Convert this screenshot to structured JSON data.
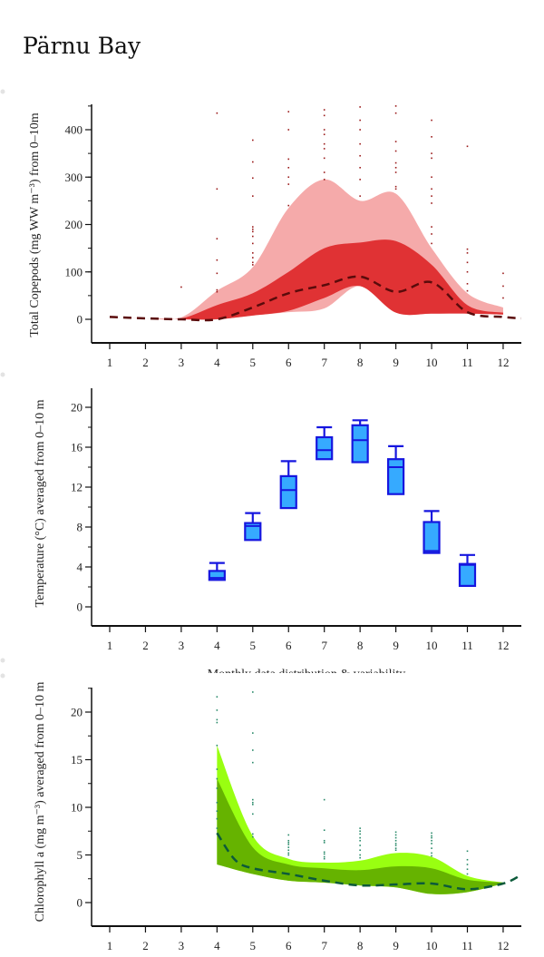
{
  "title": "Pärnu Bay",
  "colors": {
    "copepod_outer": "#f5aaaa",
    "copepod_inner": "#e03234",
    "copepod_median": "#5a0b0b",
    "copepod_points": "#9b1b1b",
    "temp_box_fill": "#36aaff",
    "temp_box_stroke": "#1616df",
    "chl_outer": "#99ff11",
    "chl_inner": "#66b300",
    "chl_median": "#0c5a3a",
    "chl_points": "#2a8a6a"
  },
  "chart_data": [
    {
      "type": "area",
      "ylabel": "Total Copepods (mg WW m⁻³) from 0–10m",
      "xticks": [
        "1",
        "2",
        "3",
        "4",
        "5",
        "6",
        "7",
        "8",
        "9",
        "10",
        "11",
        "12"
      ],
      "yticks": [
        "0",
        "100",
        "200",
        "300",
        "400"
      ],
      "ytick_values": [
        0,
        100,
        200,
        300,
        400
      ],
      "ylim": [
        -50,
        450
      ],
      "xlim": [
        0.5,
        12.5
      ],
      "median": {
        "x": [
          1,
          2,
          3,
          4,
          5,
          6,
          7,
          8,
          9,
          10,
          11,
          12,
          12.5
        ],
        "y": [
          5,
          2,
          0,
          0,
          25,
          55,
          72,
          90,
          58,
          78,
          15,
          5,
          2
        ]
      },
      "inner_band": {
        "x": [
          1,
          2,
          3,
          4,
          5,
          6,
          7,
          8,
          9,
          10,
          11,
          12
        ],
        "lower": [
          5,
          2,
          0,
          0,
          8,
          18,
          45,
          70,
          14,
          12,
          12,
          10
        ],
        "upper": [
          5,
          2,
          2,
          30,
          55,
          100,
          150,
          162,
          165,
          115,
          30,
          14
        ]
      },
      "outer_band": {
        "x": [
          1,
          2,
          3,
          4,
          5,
          6,
          7,
          8,
          9,
          10,
          11,
          12
        ],
        "lower": [
          5,
          2,
          0,
          0,
          8,
          15,
          23,
          70,
          14,
          12,
          12,
          10
        ],
        "upper": [
          5,
          2,
          4,
          60,
          110,
          235,
          295,
          250,
          265,
          150,
          55,
          25
        ]
      },
      "points": {
        "3": [
          68
        ],
        "4": [
          435,
          275,
          170,
          125,
          97,
          62,
          58
        ],
        "5": [
          378,
          332,
          298,
          260,
          195,
          190,
          185,
          175,
          160,
          140,
          130,
          120,
          115
        ],
        "6": [
          438,
          400,
          338,
          320,
          300,
          285,
          240
        ],
        "7": [
          442,
          430,
          400,
          390,
          370,
          360,
          340,
          310,
          295
        ],
        "8": [
          448,
          420,
          400,
          370,
          345,
          320,
          295,
          260
        ],
        "9": [
          450,
          435,
          375,
          355,
          330,
          320,
          310,
          280,
          275
        ],
        "10": [
          420,
          385,
          350,
          340,
          300,
          275,
          260,
          245,
          195,
          180,
          160
        ],
        "11": [
          365,
          148,
          140,
          120,
          100,
          75,
          60
        ],
        "12": [
          97,
          70,
          45
        ]
      }
    },
    {
      "type": "box",
      "ylabel": "Temperature (°C) averaged from 0–10 m",
      "xlabel": "Monthly data distribution & variability",
      "xticks": [
        "1",
        "2",
        "3",
        "4",
        "5",
        "6",
        "7",
        "8",
        "9",
        "10",
        "11",
        "12"
      ],
      "yticks": [
        "0",
        "4",
        "8",
        "12",
        "16",
        "20"
      ],
      "ytick_values": [
        0,
        4,
        8,
        12,
        16,
        20
      ],
      "ylim": [
        -2,
        22
      ],
      "xlim": [
        0.5,
        12.5
      ],
      "boxes": [
        {
          "month": 4,
          "whisker_high": 4.4,
          "q3": 3.6,
          "median": 2.9,
          "q1": 2.7
        },
        {
          "month": 5,
          "whisker_high": 9.4,
          "q3": 8.4,
          "median": 8.1,
          "q1": 6.7
        },
        {
          "month": 6,
          "whisker_high": 14.6,
          "q3": 13.1,
          "median": 11.7,
          "q1": 9.9
        },
        {
          "month": 7,
          "whisker_high": 18.0,
          "q3": 17.0,
          "median": 15.7,
          "q1": 14.8
        },
        {
          "month": 8,
          "whisker_high": 18.7,
          "q3": 18.2,
          "median": 16.7,
          "q1": 14.5
        },
        {
          "month": 9,
          "whisker_high": 16.1,
          "q3": 14.8,
          "median": 14.0,
          "q1": 11.3
        },
        {
          "month": 10,
          "whisker_high": 9.6,
          "q3": 8.5,
          "median": 5.6,
          "q1": 5.4
        },
        {
          "month": 11,
          "whisker_high": 5.2,
          "q3": 4.3,
          "median": 4.2,
          "q1": 2.1
        }
      ]
    },
    {
      "type": "area",
      "ylabel": "Chlorophyll a (mg m⁻³) averaged from 0–10 m",
      "xticks": [
        "1",
        "2",
        "3",
        "4",
        "5",
        "6",
        "7",
        "8",
        "9",
        "10",
        "11",
        "12"
      ],
      "yticks": [
        "0",
        "5",
        "10",
        "15",
        "20"
      ],
      "ytick_values": [
        0,
        5,
        10,
        15,
        20
      ],
      "ylim": [
        -2.5,
        22.5
      ],
      "xlim": [
        0.5,
        12.5
      ],
      "median": {
        "x": [
          4,
          4.5,
          5,
          6,
          7,
          8,
          9,
          10,
          11,
          12,
          12.5
        ],
        "y": [
          7.3,
          4.5,
          3.6,
          3.0,
          2.3,
          1.8,
          1.9,
          2.0,
          1.4,
          2.0,
          2.9
        ]
      },
      "inner_band": {
        "x": [
          4,
          5,
          6,
          7,
          8,
          9,
          10,
          11,
          12
        ],
        "lower": [
          4.0,
          3.0,
          2.3,
          2.1,
          1.8,
          1.6,
          0.9,
          1.1,
          2.0
        ],
        "upper": [
          13,
          5.8,
          4.0,
          3.6,
          3.4,
          3.8,
          3.6,
          2.4,
          2.1
        ]
      },
      "outer_band": {
        "x": [
          4,
          5,
          6,
          7,
          8,
          9,
          10,
          11,
          12
        ],
        "lower": [
          4.0,
          3.0,
          2.3,
          2.1,
          1.8,
          1.6,
          0.9,
          1.1,
          2.0
        ],
        "upper": [
          16.5,
          7.0,
          4.6,
          4.2,
          4.4,
          5.2,
          4.8,
          2.8,
          2.1
        ]
      },
      "points": {
        "4": [
          21.6,
          20.2,
          19.2,
          18.9,
          16.5,
          14,
          13,
          12,
          10.5,
          9.6,
          8.8,
          7.8
        ],
        "5": [
          22.1,
          17.8,
          16.0,
          14.7,
          10.8,
          10.5,
          10.3,
          9.3,
          7.2,
          6.9
        ],
        "6": [
          7.1,
          6.5,
          6.3,
          6.1,
          5.8,
          5.5,
          5.2,
          5.0
        ],
        "7": [
          10.8,
          7.6,
          6.5,
          6.3,
          5.3,
          5.1,
          4.8,
          4.6
        ],
        "8": [
          7.8,
          7.5,
          7.2,
          6.8,
          6.5,
          6.0,
          5.5,
          5.0,
          4.7
        ],
        "9": [
          7.4,
          7.1,
          6.8,
          6.5,
          6.2,
          6.0,
          5.7,
          5.5
        ],
        "10": [
          7.3,
          7.0,
          6.8,
          6.5,
          6.2,
          5.7,
          5.2,
          4.9
        ],
        "11": [
          5.4,
          4.5,
          4.0,
          3.5,
          3.0
        ]
      }
    }
  ]
}
